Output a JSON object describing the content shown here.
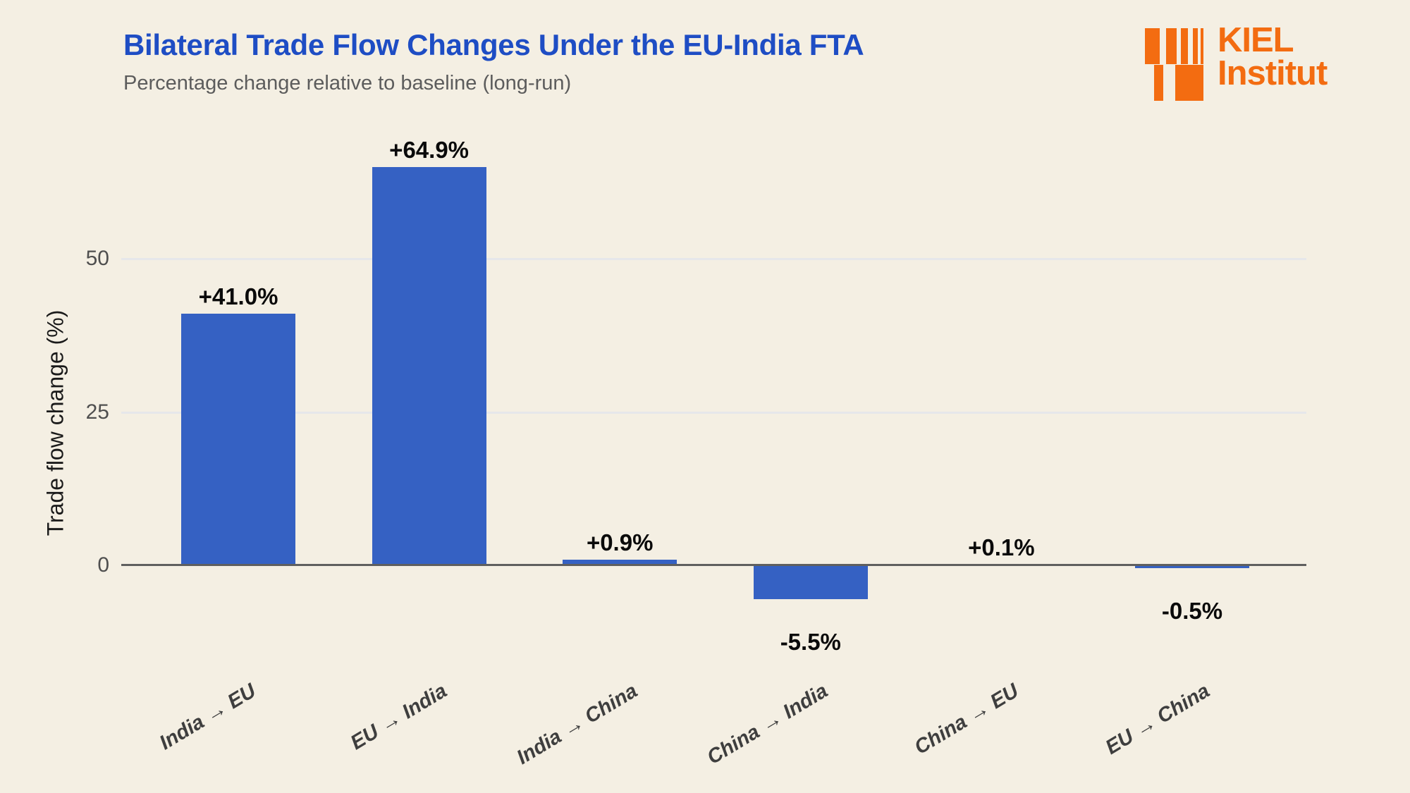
{
  "logo": {
    "line1": "KIEL",
    "line2": "Institut"
  },
  "chart_data": {
    "type": "bar",
    "title": "Bilateral Trade Flow Changes Under the EU-India FTA",
    "subtitle": "Percentage change relative to baseline (long-run)",
    "categories": [
      "India → EU",
      "EU → India",
      "India → China",
      "China → India",
      "China → EU",
      "EU → China"
    ],
    "values": [
      41.0,
      64.9,
      0.9,
      -5.5,
      0.1,
      -0.5
    ],
    "value_labels": [
      "+41.0%",
      "+64.9%",
      "+0.9%",
      "-5.5%",
      "+0.1%",
      "-0.5%"
    ],
    "xlabel": "",
    "ylabel": "Trade flow change (%)",
    "yticks": [
      {
        "label": "50",
        "value": 50
      },
      {
        "label": "25",
        "value": 25
      },
      {
        "label": "0",
        "value": 0
      }
    ],
    "ylim": [
      -10,
      70
    ],
    "grid": "horizontal-only",
    "legend": "none",
    "bar_color": "#3561c3"
  },
  "colors": {
    "background": "#f4efe3",
    "bar_blue": "#3561c3",
    "title_blue": "#1e4dc4",
    "logo_orange": "#f36c11",
    "gridline": "#e6e7ea",
    "axis_line": "#5f5f5f",
    "value_label_black": "#0a0a0a",
    "tick_label_gray": "#4f4f4f",
    "x_label_gray": "#3e3e3e",
    "subtitle_gray": "#5c5c5c"
  }
}
